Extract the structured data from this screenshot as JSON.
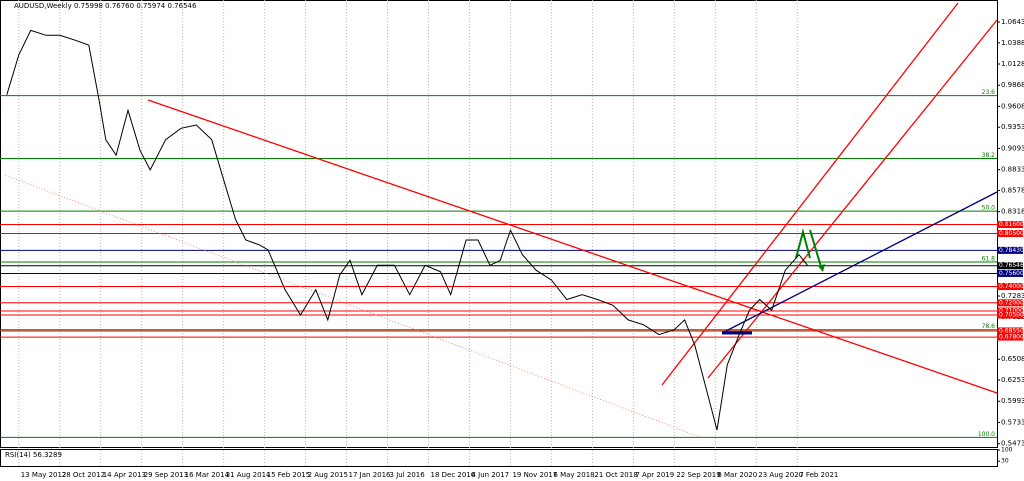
{
  "chart_data": {
    "type": "line",
    "title": "AUDUSD,Weekly  0.75998 0.76760 0.75974 0.76546",
    "xlim": [
      "2012-02-26",
      "2023-05-07"
    ],
    "ylim": [
      0.5432,
      1.0913
    ],
    "xticks": [
      {
        "value": "2012-05-13",
        "label": "13 May 2012"
      },
      {
        "value": "2012-10-28",
        "label": "28 Oct 2012"
      },
      {
        "value": "2013-04-14",
        "label": "14 Apr 2013"
      },
      {
        "value": "2013-09-29",
        "label": "29 Sep 2013"
      },
      {
        "value": "2014-03-16",
        "label": "16 Mar 2014"
      },
      {
        "value": "2014-08-31",
        "label": "31 Aug 2014"
      },
      {
        "value": "2015-02-15",
        "label": "15 Feb 2015"
      },
      {
        "value": "2015-08-02",
        "label": "2 Aug 2015"
      },
      {
        "value": "2016-01-17",
        "label": "17 Jan 2016"
      },
      {
        "value": "2016-07-03",
        "label": "3 Jul 2016"
      },
      {
        "value": "2016-12-18",
        "label": "18 Dec 2016"
      },
      {
        "value": "2017-06-04",
        "label": "4 Jun 2017"
      },
      {
        "value": "2017-11-19",
        "label": "19 Nov 2017"
      },
      {
        "value": "2018-05-06",
        "label": "6 May 2018"
      },
      {
        "value": "2018-10-21",
        "label": "21 Oct 2018"
      },
      {
        "value": "2019-04-07",
        "label": "7 Apr 2019"
      },
      {
        "value": "2019-09-22",
        "label": "22 Sep 2019"
      },
      {
        "value": "2020-03-08",
        "label": "8 Mar 2020"
      },
      {
        "value": "2020-08-23",
        "label": "23 Aug 2020"
      },
      {
        "value": "2021-02-07",
        "label": "7 Feb 2021"
      }
    ],
    "yticks": [
      {
        "value": 1.0643,
        "label": "1.06430"
      },
      {
        "value": 1.0388,
        "label": "1.03880"
      },
      {
        "value": 1.0128,
        "label": "1.01280"
      },
      {
        "value": 0.9868,
        "label": "0.98680"
      },
      {
        "value": 0.9608,
        "label": "0.96080"
      },
      {
        "value": 0.9353,
        "label": "0.93530"
      },
      {
        "value": 0.9093,
        "label": "0.90930"
      },
      {
        "value": 0.8833,
        "label": "0.88330"
      },
      {
        "value": 0.8578,
        "label": "0.85780"
      },
      {
        "value": 0.8318,
        "label": "0.83180"
      },
      {
        "value": 0.7283,
        "label": "0.72830"
      },
      {
        "value": 0.7023,
        "label": "0.70230"
      },
      {
        "value": 0.6508,
        "label": "0.65080"
      },
      {
        "value": 0.6253,
        "label": "0.62530"
      },
      {
        "value": 0.5993,
        "label": "0.59930"
      },
      {
        "value": 0.5733,
        "label": "0.57330"
      },
      {
        "value": 0.5473,
        "label": "0.54730"
      }
    ],
    "grid": true,
    "series": [
      {
        "name": "AUDUSD",
        "color": "#000000",
        "x": [
          "2012-03-25",
          "2012-05-13",
          "2012-07-01",
          "2012-09-02",
          "2012-10-28",
          "2012-12-30",
          "2013-02-24",
          "2013-04-07",
          "2013-05-05",
          "2013-06-16",
          "2013-08-04",
          "2013-09-22",
          "2013-11-03",
          "2014-01-05",
          "2014-03-09",
          "2014-05-11",
          "2014-07-13",
          "2014-08-31",
          "2014-10-19",
          "2014-11-30",
          "2015-01-25",
          "2015-03-01",
          "2015-05-10",
          "2015-07-12",
          "2015-09-13",
          "2015-11-01",
          "2015-12-20",
          "2016-01-31",
          "2016-03-20",
          "2016-05-22",
          "2016-07-31",
          "2016-10-02",
          "2016-12-04",
          "2017-02-05",
          "2017-03-19",
          "2017-05-21",
          "2017-07-09",
          "2017-08-27",
          "2017-10-08",
          "2017-11-19",
          "2018-01-07",
          "2018-03-04",
          "2018-05-06",
          "2018-07-08",
          "2018-09-09",
          "2018-11-11",
          "2019-01-13",
          "2019-03-17",
          "2019-05-19",
          "2019-07-21",
          "2019-09-22",
          "2019-11-03",
          "2019-12-15",
          "2020-03-15",
          "2020-04-26",
          "2020-06-14",
          "2020-07-26",
          "2020-09-06",
          "2020-10-25",
          "2020-12-20",
          "2021-02-14",
          "2021-03-21"
        ],
        "values": [
          0.975,
          1.024,
          1.054,
          1.048,
          1.048,
          1.042,
          1.036,
          0.969,
          0.92,
          0.901,
          0.956,
          0.907,
          0.883,
          0.92,
          0.934,
          0.938,
          0.92,
          0.871,
          0.822,
          0.797,
          0.791,
          0.785,
          0.736,
          0.705,
          0.736,
          0.699,
          0.754,
          0.772,
          0.73,
          0.766,
          0.766,
          0.73,
          0.766,
          0.758,
          0.73,
          0.797,
          0.797,
          0.766,
          0.772,
          0.809,
          0.779,
          0.76,
          0.748,
          0.724,
          0.73,
          0.724,
          0.717,
          0.699,
          0.693,
          0.681,
          0.687,
          0.699,
          0.668,
          0.564,
          0.644,
          0.681,
          0.711,
          0.724,
          0.711,
          0.76,
          0.779,
          0.766
        ]
      }
    ],
    "price_levels": [
      {
        "value": 0.816,
        "label": "0.81600",
        "color": "#ff0000"
      },
      {
        "value": 0.805,
        "label": "0.80500",
        "color": "#ff0000"
      },
      {
        "value": 0.7843,
        "label": "0.78430",
        "color": "#00007f"
      },
      {
        "value": 0.76546,
        "label": "0.76546",
        "color": "#000000"
      },
      {
        "value": 0.756,
        "label": "0.75600",
        "color": "#00007f"
      },
      {
        "value": 0.74,
        "label": "0.74000",
        "color": "#ff0000"
      },
      {
        "value": 0.72,
        "label": "0.72000",
        "color": "#ff0000"
      },
      {
        "value": 0.71,
        "label": "0.71000",
        "color": "#ff0000"
      },
      {
        "value": 0.705,
        "label": "0.70500",
        "color": "#ff0000"
      },
      {
        "value": 0.6855,
        "label": "0.68550",
        "color": "#ff0000"
      },
      {
        "value": 0.678,
        "label": "0.67800",
        "color": "#ff0000"
      }
    ],
    "fib_levels": [
      {
        "value": 0.974,
        "label": "23.6"
      },
      {
        "value": 0.897,
        "label": "38.2"
      },
      {
        "value": 0.8325,
        "label": "50.0"
      },
      {
        "value": 0.77,
        "label": "61.8"
      },
      {
        "value": 0.687,
        "label": "78.6"
      },
      {
        "value": 0.555,
        "label": "100.0"
      }
    ],
    "fib_color": "#008000",
    "rsi": {
      "label": "RSI(14) 56.3289",
      "ylim": [
        0,
        100
      ],
      "yticks": [
        100,
        30
      ]
    }
  }
}
